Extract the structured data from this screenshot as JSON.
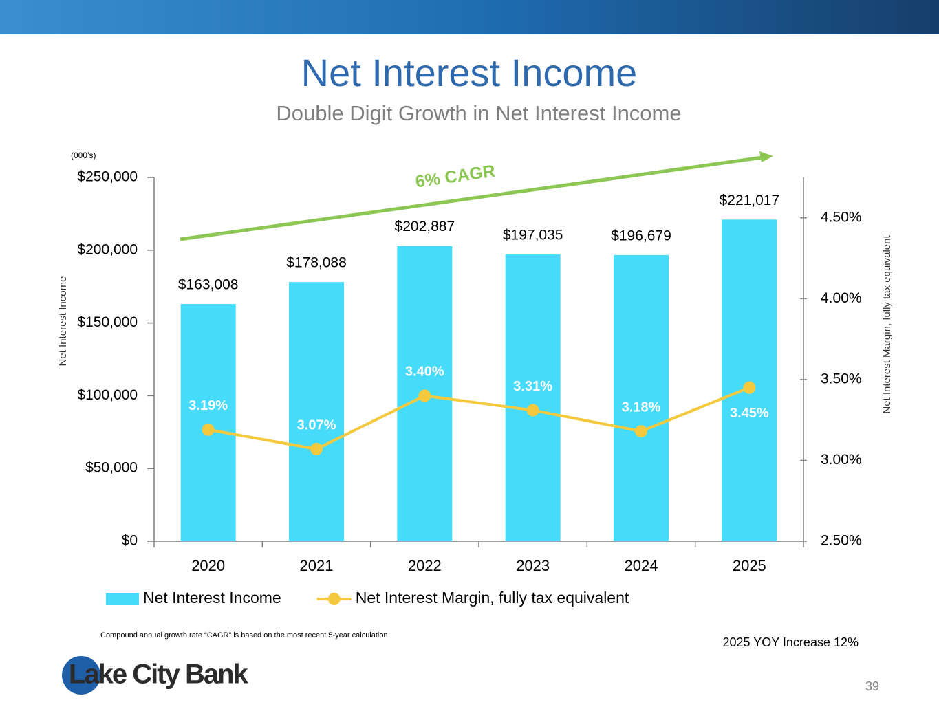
{
  "chart_data": {
    "type": "bar",
    "title": "Net Interest Income",
    "subtitle": "Double Digit Growth in Net Interest Income",
    "unit_note": "(000’s)",
    "y_label": "Net Interest Income",
    "y2_label": "Net Interest Margin, fully tax equivalent",
    "annotation": "6% CAGR",
    "categories": [
      "2020",
      "2021",
      "2022",
      "2023",
      "2024",
      "2025"
    ],
    "series": [
      {
        "name": "Net Interest Income",
        "type": "bar",
        "color": "#47dbfb",
        "values": [
          163008,
          178088,
          202887,
          197035,
          196679,
          221017
        ],
        "value_labels": [
          "$163,008",
          "$178,088",
          "$202,887",
          "$197,035",
          "$196,679",
          "$221,017"
        ]
      },
      {
        "name": "Net Interest Margin, fully tax equivalent",
        "type": "line",
        "axis": "y2",
        "color": "#f5c93e",
        "values": [
          3.19,
          3.07,
          3.4,
          3.31,
          3.18,
          3.45
        ],
        "value_labels": [
          "3.19%",
          "3.07%",
          "3.40%",
          "3.31%",
          "3.18%",
          "3.45%"
        ]
      }
    ],
    "ylim": [
      0,
      250000
    ],
    "yticks": [
      {
        "value": 0,
        "label": "$0"
      },
      {
        "value": 50000,
        "label": "$50,000"
      },
      {
        "value": 100000,
        "label": "$100,000"
      },
      {
        "value": 150000,
        "label": "$150,000"
      },
      {
        "value": 200000,
        "label": "$200,000"
      },
      {
        "value": 250000,
        "label": "$250,000"
      }
    ],
    "y2lim": [
      2.5,
      4.75
    ],
    "y2ticks": [
      {
        "value": 2.5,
        "label": "2.50%"
      },
      {
        "value": 3.0,
        "label": "3.00%"
      },
      {
        "value": 3.5,
        "label": "3.50%"
      },
      {
        "value": 4.0,
        "label": "4.00%"
      },
      {
        "value": 4.5,
        "label": "4.50%"
      }
    ],
    "legend": "bottom"
  },
  "footer": {
    "footnote": "Compound annual growth rate “CAGR” is based on the most recent 5-year calculation",
    "yoy_note": "2025 YOY Increase 12%",
    "logo": "Lake City Bank",
    "page_number": "39"
  }
}
